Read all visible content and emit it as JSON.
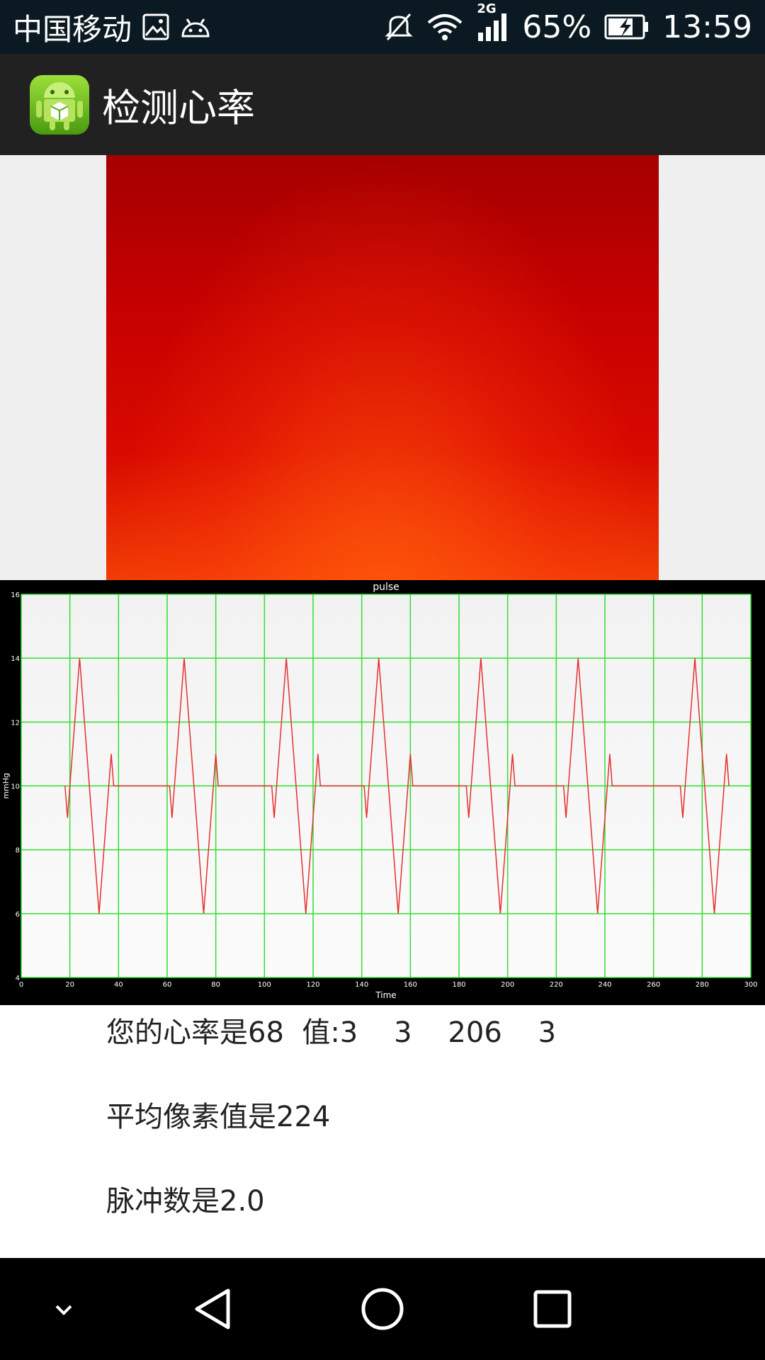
{
  "status_bar": {
    "carrier": "中国移动",
    "network_type": "2G",
    "battery_percent": "65%",
    "time": "13:59",
    "icons": [
      "gallery-icon",
      "android-debug-icon",
      "mute-icon",
      "wifi-icon",
      "signal-icon",
      "battery-charging-icon"
    ]
  },
  "action_bar": {
    "title": "检测心率",
    "icon": "android-app-icon"
  },
  "chart_data": {
    "type": "line",
    "title": "pulse",
    "xlabel": "Time",
    "ylabel": "mmHg",
    "xlim": [
      0,
      300
    ],
    "ylim": [
      4,
      16
    ],
    "x_ticks": [
      0,
      20,
      40,
      60,
      80,
      100,
      120,
      140,
      160,
      180,
      200,
      220,
      240,
      260,
      280,
      300
    ],
    "y_ticks": [
      4,
      6,
      8,
      10,
      12,
      14,
      16
    ],
    "grid": true,
    "colors": {
      "grid": "#33dd33",
      "line": "#e53030",
      "plot_bg": "#f6f6f6",
      "frame_bg": "#000000"
    },
    "series": [
      {
        "x": [
          18,
          19,
          24,
          32,
          37,
          38,
          61,
          62,
          67,
          75,
          80,
          81,
          103,
          104,
          109,
          117,
          122,
          123,
          141,
          142,
          147,
          155,
          160,
          161,
          183,
          184,
          189,
          197,
          202,
          203,
          223,
          224,
          229,
          237,
          242,
          243,
          271,
          272,
          277,
          285,
          290,
          291
        ],
        "y": [
          10,
          9,
          14,
          6,
          11,
          10,
          10,
          9,
          14,
          6,
          11,
          10,
          10,
          9,
          14,
          6,
          11,
          10,
          10,
          9,
          14,
          6,
          11,
          10,
          10,
          9,
          14,
          6,
          11,
          10,
          10,
          9,
          14,
          6,
          11,
          10,
          10,
          9,
          14,
          6,
          11,
          10
        ]
      }
    ]
  },
  "info": {
    "heart_rate": "您的心率是68  值:3    3    206    3",
    "avg_pixel": "平均像素值是224",
    "pulse_count": "脉冲数是2.0"
  },
  "nav_bar": {
    "buttons": [
      "collapse",
      "back",
      "home",
      "recents"
    ]
  }
}
